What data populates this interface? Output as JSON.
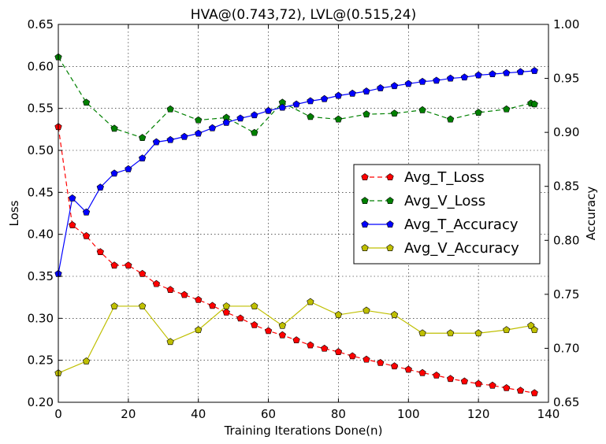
{
  "chart_data": {
    "type": "line",
    "title": "HVA@(0.743,72), LVL@(0.515,24)",
    "xlabel": "Training Iterations Done(n)",
    "ylabel": "Loss",
    "y2label": "Accuracy",
    "xlim": [
      0,
      140
    ],
    "ylim": [
      0.2,
      0.65
    ],
    "y2lim": [
      0.65,
      1.0
    ],
    "xticks": [
      0,
      20,
      40,
      60,
      80,
      100,
      120,
      140
    ],
    "yticks": [
      0.2,
      0.25,
      0.3,
      0.35,
      0.4,
      0.45,
      0.5,
      0.55,
      0.6,
      0.65
    ],
    "y2ticks": [
      0.65,
      0.7,
      0.75,
      0.8,
      0.85,
      0.9,
      0.95,
      1.0
    ],
    "xtick_labels": [
      "0",
      "20",
      "40",
      "60",
      "80",
      "100",
      "120",
      "140"
    ],
    "ytick_labels": [
      "0.20",
      "0.25",
      "0.30",
      "0.35",
      "0.40",
      "0.45",
      "0.50",
      "0.55",
      "0.60",
      "0.65"
    ],
    "y2tick_labels": [
      "0.65",
      "0.70",
      "0.75",
      "0.80",
      "0.85",
      "0.90",
      "0.95",
      "1.00"
    ],
    "grid": true,
    "legend_position": "center-right",
    "series": [
      {
        "name": "Avg_T_Loss",
        "axis": "left",
        "color": "#ff0000",
        "line_style": "dashed",
        "x": [
          0,
          4,
          8,
          12,
          16,
          20,
          24,
          28,
          32,
          36,
          40,
          44,
          48,
          52,
          56,
          60,
          64,
          68,
          72,
          76,
          80,
          84,
          88,
          92,
          96,
          100,
          104,
          108,
          112,
          116,
          120,
          124,
          128,
          132,
          136
        ],
        "values": [
          0.528,
          0.411,
          0.398,
          0.379,
          0.363,
          0.363,
          0.353,
          0.341,
          0.334,
          0.328,
          0.322,
          0.315,
          0.307,
          0.3,
          0.292,
          0.285,
          0.28,
          0.274,
          0.268,
          0.264,
          0.26,
          0.255,
          0.251,
          0.247,
          0.243,
          0.239,
          0.235,
          0.232,
          0.228,
          0.225,
          0.222,
          0.22,
          0.217,
          0.214,
          0.211
        ]
      },
      {
        "name": "Avg_V_Loss",
        "axis": "left",
        "color": "#008000",
        "line_style": "dashed",
        "x": [
          0,
          8,
          16,
          24,
          32,
          40,
          48,
          56,
          64,
          72,
          80,
          88,
          96,
          104,
          112,
          120,
          128,
          135,
          136
        ],
        "values": [
          0.611,
          0.557,
          0.526,
          0.515,
          0.549,
          0.536,
          0.539,
          0.521,
          0.557,
          0.54,
          0.537,
          0.543,
          0.544,
          0.548,
          0.537,
          0.545,
          0.549,
          0.556,
          0.555
        ]
      },
      {
        "name": "Avg_T_Accuracy",
        "axis": "right",
        "color": "#0000ff",
        "line_style": "solid",
        "x": [
          0,
          4,
          8,
          12,
          16,
          20,
          24,
          28,
          32,
          36,
          40,
          44,
          48,
          52,
          56,
          60,
          64,
          68,
          72,
          76,
          80,
          84,
          88,
          92,
          96,
          100,
          104,
          108,
          112,
          116,
          120,
          124,
          128,
          132,
          136
        ],
        "values": [
          0.769,
          0.839,
          0.826,
          0.849,
          0.862,
          0.866,
          0.876,
          0.891,
          0.893,
          0.896,
          0.899,
          0.904,
          0.909,
          0.913,
          0.916,
          0.92,
          0.923,
          0.926,
          0.929,
          0.931,
          0.934,
          0.936,
          0.938,
          0.941,
          0.943,
          0.945,
          0.947,
          0.948,
          0.95,
          0.951,
          0.953,
          0.954,
          0.955,
          0.956,
          0.957
        ]
      },
      {
        "name": "Avg_V_Accuracy",
        "axis": "right",
        "color": "#bfbf00",
        "line_style": "solid",
        "x": [
          0,
          8,
          16,
          24,
          32,
          40,
          48,
          56,
          64,
          72,
          80,
          88,
          96,
          104,
          112,
          120,
          128,
          135,
          136
        ],
        "values": [
          0.677,
          0.688,
          0.739,
          0.739,
          0.706,
          0.717,
          0.739,
          0.739,
          0.721,
          0.743,
          0.731,
          0.735,
          0.731,
          0.714,
          0.714,
          0.714,
          0.717,
          0.721,
          0.717
        ]
      }
    ]
  }
}
